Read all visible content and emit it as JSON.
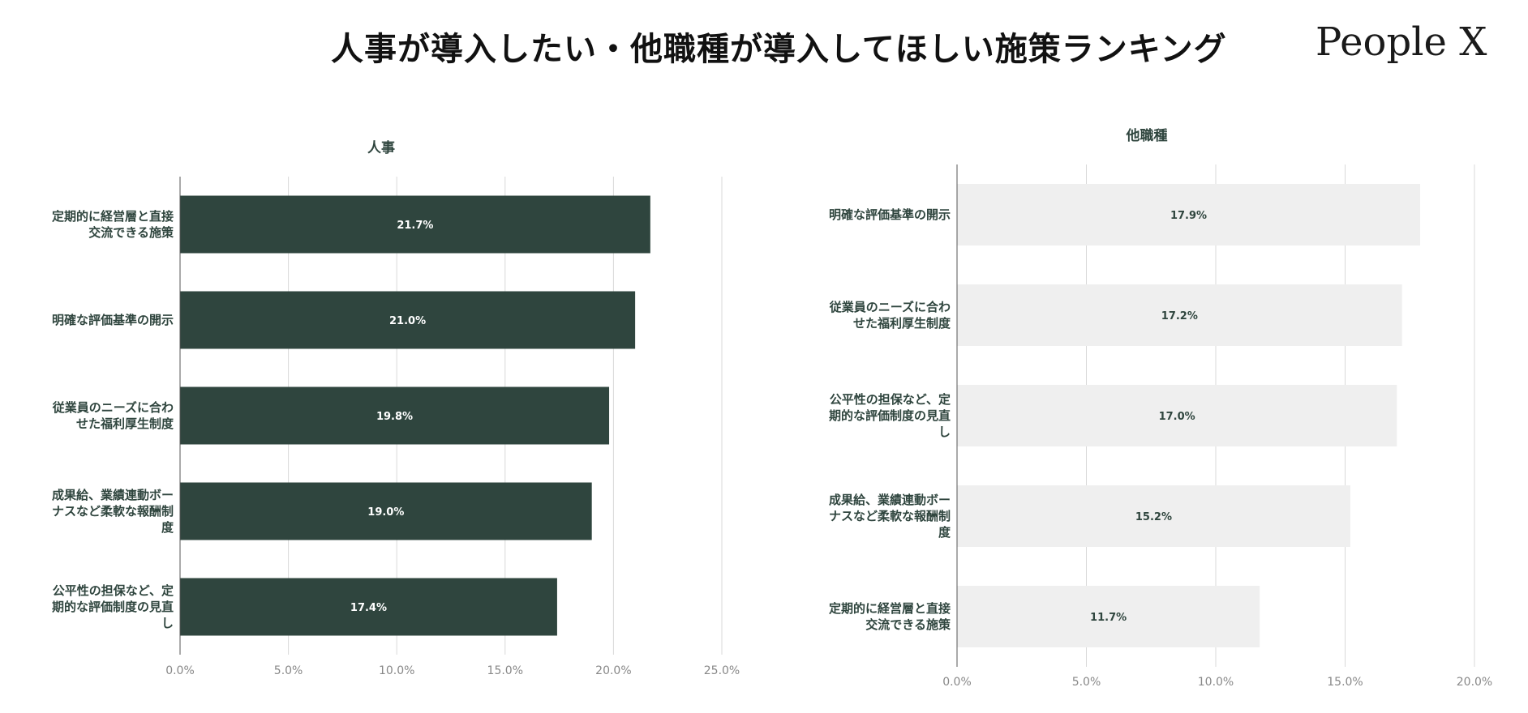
{
  "header": {
    "title": "人事が導入したい・他職種が導入してほしい施策ランキング",
    "logo_text": "People X"
  },
  "colors": {
    "hr_bar": "#2f453e",
    "hr_label": "#ffffff",
    "other_bar": "#efefef",
    "other_label": "#2f453e",
    "category_text": "#2f453e",
    "tick_text": "#888888",
    "grid": "#d9d9d9",
    "axis": "#555555"
  },
  "chart_data": [
    {
      "type": "bar",
      "orientation": "horizontal",
      "title": "人事",
      "categories": [
        [
          "定期的に経営層と直接",
          "交流できる施策"
        ],
        [
          "明確な評価基準の開示"
        ],
        [
          "従業員のニーズに合わ",
          "せた福利厚生制度"
        ],
        [
          "成果給、業績連動ボー",
          "ナスなど柔軟な報酬制",
          "度"
        ],
        [
          "公平性の担保など、定",
          "期的な評価制度の見直",
          "し"
        ]
      ],
      "values": [
        21.7,
        21.0,
        19.8,
        19.0,
        17.4
      ],
      "value_labels": [
        "21.7%",
        "21.0%",
        "19.8%",
        "19.0%",
        "17.4%"
      ],
      "xlim": [
        0,
        25
      ],
      "ticks": [
        "0.0%",
        "5.0%",
        "10.0%",
        "15.0%",
        "20.0%",
        "25.0%"
      ],
      "grid": true
    },
    {
      "type": "bar",
      "orientation": "horizontal",
      "title": "他職種",
      "categories": [
        [
          "明確な評価基準の開示"
        ],
        [
          "従業員のニーズに合わ",
          "せた福利厚生制度"
        ],
        [
          "公平性の担保など、定",
          "期的な評価制度の見直",
          "し"
        ],
        [
          "成果給、業績連動ボー",
          "ナスなど柔軟な報酬制",
          "度"
        ],
        [
          "定期的に経営層と直接",
          "交流できる施策"
        ]
      ],
      "values": [
        17.9,
        17.2,
        17.0,
        15.2,
        11.7
      ],
      "value_labels": [
        "17.9%",
        "17.2%",
        "17.0%",
        "15.2%",
        "11.7%"
      ],
      "xlim": [
        0,
        20
      ],
      "ticks": [
        "0.0%",
        "5.0%",
        "10.0%",
        "15.0%",
        "20.0%"
      ],
      "grid": true
    }
  ]
}
